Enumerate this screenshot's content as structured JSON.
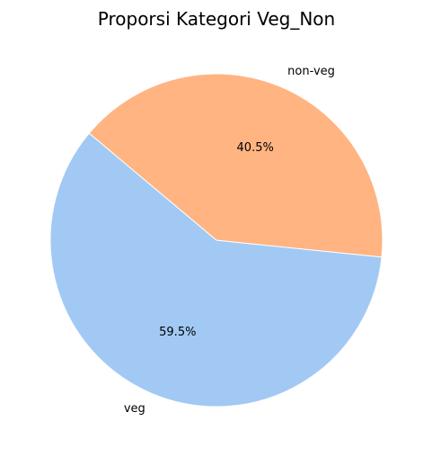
{
  "chart_data": {
    "type": "pie",
    "title": "Proporsi Kategori Veg_Non",
    "slices": [
      {
        "label": "veg",
        "value": 59.5,
        "pct_label": "59.5%",
        "color": "#a1c9f4"
      },
      {
        "label": "non-veg",
        "value": 40.5,
        "pct_label": "40.5%",
        "color": "#ffb482"
      }
    ],
    "start_angle_deg": 140,
    "direction": "counterclockwise",
    "legend": "none"
  }
}
